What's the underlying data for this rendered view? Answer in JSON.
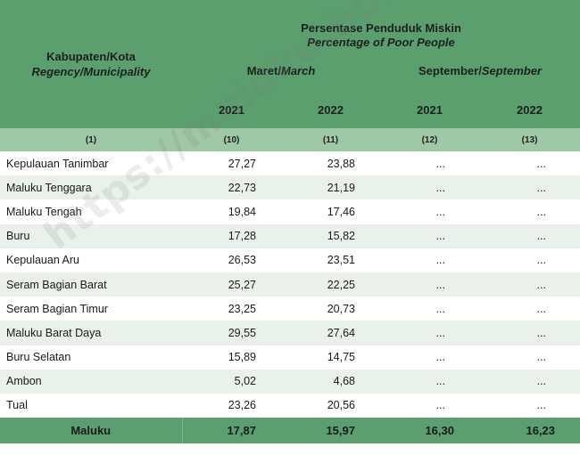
{
  "header": {
    "regency_label": "Kabupaten/Kota",
    "regency_label_en": "Regency/Municipality",
    "title": "Persentase Penduduk Miskin",
    "title_en": "Percentage of Poor People",
    "period1": "Maret/",
    "period1_en": "March",
    "period2": "September/",
    "period2_en": "September",
    "years": [
      "2021",
      "2022",
      "2021",
      "2022"
    ],
    "col_numbers": [
      "(1)",
      "(10)",
      "(11)",
      "(12)",
      "(13)"
    ]
  },
  "rows": [
    {
      "name": "Kepulauan Tanimbar",
      "mar2021": "27,27",
      "mar2022": "23,88",
      "sep2021": "...",
      "sep2022": "..."
    },
    {
      "name": "Maluku Tenggara",
      "mar2021": "22,73",
      "mar2022": "21,19",
      "sep2021": "...",
      "sep2022": "..."
    },
    {
      "name": "Maluku Tengah",
      "mar2021": "19,84",
      "mar2022": "17,46",
      "sep2021": "...",
      "sep2022": "..."
    },
    {
      "name": "Buru",
      "mar2021": "17,28",
      "mar2022": "15,82",
      "sep2021": "...",
      "sep2022": "..."
    },
    {
      "name": "Kepulauan Aru",
      "mar2021": "26,53",
      "mar2022": "23,51",
      "sep2021": "...",
      "sep2022": "..."
    },
    {
      "name": "Seram Bagian Barat",
      "mar2021": "25,27",
      "mar2022": "22,25",
      "sep2021": "...",
      "sep2022": "..."
    },
    {
      "name": "Seram Bagian Timur",
      "mar2021": "23,25",
      "mar2022": "20,73",
      "sep2021": "...",
      "sep2022": "..."
    },
    {
      "name": "Maluku Barat Daya",
      "mar2021": "29,55",
      "mar2022": "27,64",
      "sep2021": "...",
      "sep2022": "..."
    },
    {
      "name": "Buru Selatan",
      "mar2021": "15,89",
      "mar2022": "14,75",
      "sep2021": "...",
      "sep2022": "..."
    },
    {
      "name": "Ambon",
      "mar2021": "5,02",
      "mar2022": "4,68",
      "sep2021": "...",
      "sep2022": "..."
    },
    {
      "name": "Tual",
      "mar2021": "23,26",
      "mar2022": "20,56",
      "sep2021": "...",
      "sep2022": "..."
    }
  ],
  "total": {
    "name": "Maluku",
    "mar2021": "17,87",
    "mar2022": "15,97",
    "sep2021": "16,30",
    "sep2022": "16,23"
  },
  "watermark": "https://maluku.bps.go.id",
  "colors": {
    "header_green": "#5b9f6e",
    "subheader_green": "#9fc8a6",
    "stripe": "#e9f1ea"
  }
}
